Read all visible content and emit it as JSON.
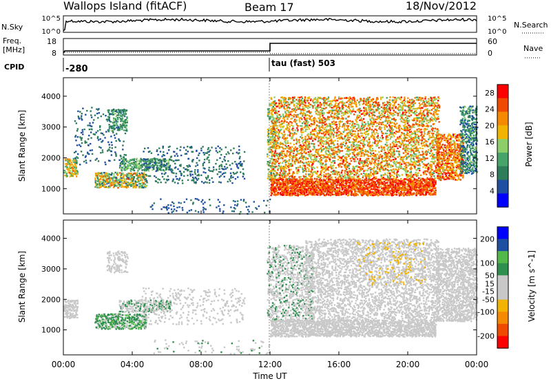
{
  "header": {
    "site": "Wallops Island (fitACF)",
    "beam": "Beam 17",
    "date": "18/Nov/2012"
  },
  "panels": {
    "nsky": {
      "label": "N.Sky",
      "ticks": [
        "10^5",
        "10^0"
      ],
      "right_label": "N.Search",
      "right_ticks": [
        "10^5",
        "10^0"
      ]
    },
    "freq": {
      "label_line1": "Freq.",
      "label_line2": "[MHz]",
      "ticks": [
        "18",
        "8"
      ],
      "right_label": "Nave",
      "right_ticks": [
        "60",
        "0"
      ]
    },
    "cpid": {
      "label": "CPID",
      "entries": [
        {
          "time": "00:00",
          "text": "-280"
        },
        {
          "time": "12:00",
          "text": "tau (fast) 503"
        }
      ]
    }
  },
  "colors": {
    "power": [
      "#0000ff",
      "#1f4fa0",
      "#2e7d5a",
      "#46a46a",
      "#8ccf6a",
      "#f2b400",
      "#f58a00",
      "#f04a00",
      "#ff0000"
    ],
    "velocity": [
      "#ff0000",
      "#f04a00",
      "#f58a00",
      "#f2b400",
      "#c8c8c8",
      "#c8c8c8",
      "#2f8f4f",
      "#53b84a",
      "#1f4fa0",
      "#0000ff"
    ]
  },
  "chart_data": [
    {
      "type": "heatmap",
      "name": "power",
      "xlabel": "",
      "ylabel": "Slant Range [km]",
      "xlim": [
        "00:00",
        "24:00"
      ],
      "ylim": [
        180,
        4600
      ],
      "yticks": [
        1000,
        2000,
        3000,
        4000
      ],
      "colorbar": {
        "label": "Power [dB]",
        "ticks": [
          4,
          8,
          12,
          16,
          20,
          24,
          28
        ],
        "range": [
          0,
          30
        ]
      },
      "regions": [
        {
          "t0": 0.0,
          "t1": 0.8,
          "r0": 1400,
          "r1": 2000,
          "v0": 10,
          "v1": 24,
          "d": 0.55
        },
        {
          "t0": 0.6,
          "t1": 3.6,
          "r0": 1800,
          "r1": 3700,
          "v0": 4,
          "v1": 10,
          "d": 0.08
        },
        {
          "t0": 2.5,
          "t1": 3.7,
          "r0": 2900,
          "r1": 3600,
          "v0": 6,
          "v1": 14,
          "d": 0.35
        },
        {
          "t0": 1.8,
          "t1": 4.8,
          "r0": 1050,
          "r1": 1550,
          "v0": 6,
          "v1": 24,
          "d": 0.55
        },
        {
          "t0": 3.2,
          "t1": 6.2,
          "r0": 1600,
          "r1": 2000,
          "v0": 6,
          "v1": 16,
          "d": 0.45
        },
        {
          "t0": 4.5,
          "t1": 10.5,
          "r0": 1200,
          "r1": 2400,
          "v0": 4,
          "v1": 10,
          "d": 0.12
        },
        {
          "t0": 5.0,
          "t1": 12.0,
          "r0": 200,
          "r1": 700,
          "v0": 4,
          "v1": 8,
          "d": 0.06
        },
        {
          "t0": 11.8,
          "t1": 12.3,
          "r0": 1300,
          "r1": 3800,
          "v0": 8,
          "v1": 20,
          "d": 0.35
        },
        {
          "t0": 12.0,
          "t1": 21.6,
          "r0": 800,
          "r1": 1350,
          "v0": 20,
          "v1": 30,
          "d": 0.7
        },
        {
          "t0": 12.0,
          "t1": 21.8,
          "r0": 1350,
          "r1": 4000,
          "v0": 12,
          "v1": 28,
          "d": 0.32
        },
        {
          "t0": 21.6,
          "t1": 23.2,
          "r0": 1300,
          "r1": 2800,
          "v0": 16,
          "v1": 30,
          "d": 0.5
        },
        {
          "t0": 23.0,
          "t1": 24.0,
          "r0": 1500,
          "r1": 3700,
          "v0": 4,
          "v1": 14,
          "d": 0.45
        }
      ]
    },
    {
      "type": "heatmap",
      "name": "velocity",
      "xlabel": "Time UT",
      "ylabel": "Slant Range [km]",
      "xlim": [
        "00:00",
        "24:00"
      ],
      "ylim": [
        180,
        4600
      ],
      "yticks": [
        1000,
        2000,
        3000,
        4000
      ],
      "xticks": [
        "00:00",
        "04:00",
        "08:00",
        "12:00",
        "16:00",
        "20:00",
        "00:00"
      ],
      "colorbar": {
        "label": "Velocity [m s^-1]",
        "ticks": [
          200,
          100,
          50,
          15,
          -15,
          -50,
          -100,
          -200
        ],
        "range": [
          -250,
          250
        ]
      },
      "regions": [
        {
          "t0": 0.0,
          "t1": 0.8,
          "r0": 1400,
          "r1": 2000,
          "v0": -15,
          "v1": 15,
          "d": 0.55
        },
        {
          "t0": 2.5,
          "t1": 3.7,
          "r0": 2900,
          "r1": 3600,
          "v0": -15,
          "v1": 15,
          "d": 0.35
        },
        {
          "t0": 1.8,
          "t1": 4.8,
          "r0": 1050,
          "r1": 1550,
          "v0": 20,
          "v1": 120,
          "d": 0.55
        },
        {
          "t0": 3.2,
          "t1": 6.2,
          "r0": 1600,
          "r1": 2000,
          "v0": 20,
          "v1": 70,
          "d": 0.45
        },
        {
          "t0": 4.5,
          "t1": 10.5,
          "r0": 1200,
          "r1": 2400,
          "v0": -15,
          "v1": 15,
          "d": 0.1
        },
        {
          "t0": 5.0,
          "t1": 12.0,
          "r0": 200,
          "r1": 700,
          "v0": 20,
          "v1": 60,
          "d": 0.05
        },
        {
          "t0": 11.8,
          "t1": 14.5,
          "r0": 1300,
          "r1": 3800,
          "v0": 20,
          "v1": 60,
          "d": 0.3
        },
        {
          "t0": 12.0,
          "t1": 21.6,
          "r0": 800,
          "r1": 1350,
          "v0": -15,
          "v1": 15,
          "d": 0.65
        },
        {
          "t0": 14.0,
          "t1": 21.8,
          "r0": 1350,
          "r1": 4000,
          "v0": -15,
          "v1": 15,
          "d": 0.3
        },
        {
          "t0": 17.0,
          "t1": 21.0,
          "r0": 2500,
          "r1": 3900,
          "v0": -90,
          "v1": -20,
          "d": 0.08
        },
        {
          "t0": 21.6,
          "t1": 24.0,
          "r0": 1300,
          "r1": 3700,
          "v0": -15,
          "v1": 15,
          "d": 0.45
        }
      ]
    }
  ]
}
